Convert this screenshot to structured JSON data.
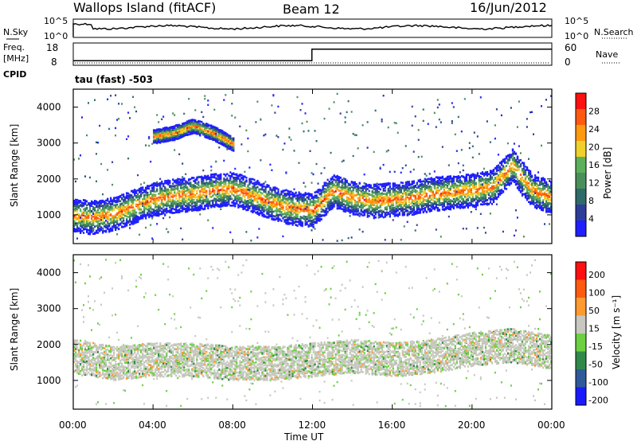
{
  "header": {
    "station": "Wallops Island (fitACF)",
    "beam": "Beam 12",
    "date": "16/Jun/2012"
  },
  "nsky_panel": {
    "left_label": "N.Sky",
    "right_label": "N.Search",
    "left_ticks": [
      "10^5",
      "10^0"
    ],
    "right_ticks": [
      "10^5",
      "10^0"
    ]
  },
  "freq_panel": {
    "left_label_1": "Freq.",
    "left_label_2": "[MHz]",
    "left_ticks": [
      "18",
      "8"
    ],
    "right_label": "Nave",
    "right_ticks": [
      "60",
      "0"
    ],
    "freq_series": [
      {
        "hour": 0.0,
        "mhz": 10.4
      },
      {
        "hour": 11.97,
        "mhz": 10.4
      },
      {
        "hour": 11.97,
        "mhz": 16.4
      },
      {
        "hour": 24.0,
        "mhz": 16.4
      }
    ]
  },
  "cpid_panel": {
    "label": "CPID",
    "value_text": "tau (fast) -503"
  },
  "colors": {
    "power_scale": [
      "#1f1fff",
      "#2e3d9a",
      "#2f6b6a",
      "#4a8f5a",
      "#5cb05c",
      "#f0d02a",
      "#ff9a10",
      "#ff5a10",
      "#ff1010"
    ],
    "velocity_scale": [
      "#ff1010",
      "#ff5a10",
      "#ff9a30",
      "#c8c8c0",
      "#6cd040",
      "#2f8a4a",
      "#2f5a9a",
      "#1a1aff"
    ]
  },
  "chart_data": [
    {
      "type": "heatmap",
      "panel": "power",
      "ylabel": "Slant Range [km]",
      "yticks": [
        "1000",
        "2000",
        "3000",
        "4000"
      ],
      "ylim": [
        200,
        4500
      ],
      "colorbar_label": "Power [dB]",
      "colorbar_ticks": [
        "4",
        "8",
        "12",
        "16",
        "20",
        "24",
        "28"
      ],
      "features": [
        {
          "name": "main echo band",
          "points": [
            [
              0,
              1000
            ],
            [
              1,
              950
            ],
            [
              2,
              1050
            ],
            [
              3,
              1250
            ],
            [
              4,
              1450
            ],
            [
              5,
              1550
            ],
            [
              6,
              1600
            ],
            [
              7,
              1700
            ],
            [
              8,
              1750
            ],
            [
              9,
              1550
            ],
            [
              10,
              1350
            ],
            [
              11,
              1200
            ],
            [
              12,
              1150
            ],
            [
              13,
              1700
            ],
            [
              14,
              1500
            ],
            [
              15,
              1400
            ],
            [
              16,
              1450
            ],
            [
              17,
              1500
            ],
            [
              18,
              1600
            ],
            [
              19,
              1650
            ],
            [
              20,
              1700
            ],
            [
              21,
              1800
            ],
            [
              22,
              2400
            ],
            [
              23,
              1700
            ],
            [
              24,
              1500
            ]
          ]
        },
        {
          "name": "upper arc",
          "points": [
            [
              4,
              3200
            ],
            [
              5,
              3300
            ],
            [
              6,
              3500
            ],
            [
              7,
              3300
            ],
            [
              8,
              3000
            ]
          ]
        }
      ]
    },
    {
      "type": "heatmap",
      "panel": "velocity",
      "ylabel": "Slant Range [km]",
      "yticks": [
        "1000",
        "2000",
        "3000",
        "4000"
      ],
      "ylim": [
        200,
        4500
      ],
      "colorbar_label": "Velocity [m s⁻¹]",
      "colorbar_ticks": [
        "200",
        "100",
        "50",
        "15",
        "-15",
        "-50",
        "-100",
        "-200"
      ],
      "features": [
        {
          "name": "ground scatter band",
          "points": [
            [
              0,
              1700
            ],
            [
              2,
              1500
            ],
            [
              4,
              1600
            ],
            [
              6,
              1600
            ],
            [
              8,
              1500
            ],
            [
              10,
              1500
            ],
            [
              12,
              1600
            ],
            [
              14,
              1700
            ],
            [
              16,
              1600
            ],
            [
              18,
              1700
            ],
            [
              20,
              1900
            ],
            [
              22,
              2000
            ],
            [
              24,
              1800
            ]
          ]
        }
      ]
    }
  ],
  "xaxis": {
    "label": "Time UT",
    "ticks": [
      "00:00",
      "04:00",
      "08:00",
      "12:00",
      "16:00",
      "20:00",
      "00:00"
    ],
    "hours": [
      0,
      4,
      8,
      12,
      16,
      20,
      24
    ]
  }
}
